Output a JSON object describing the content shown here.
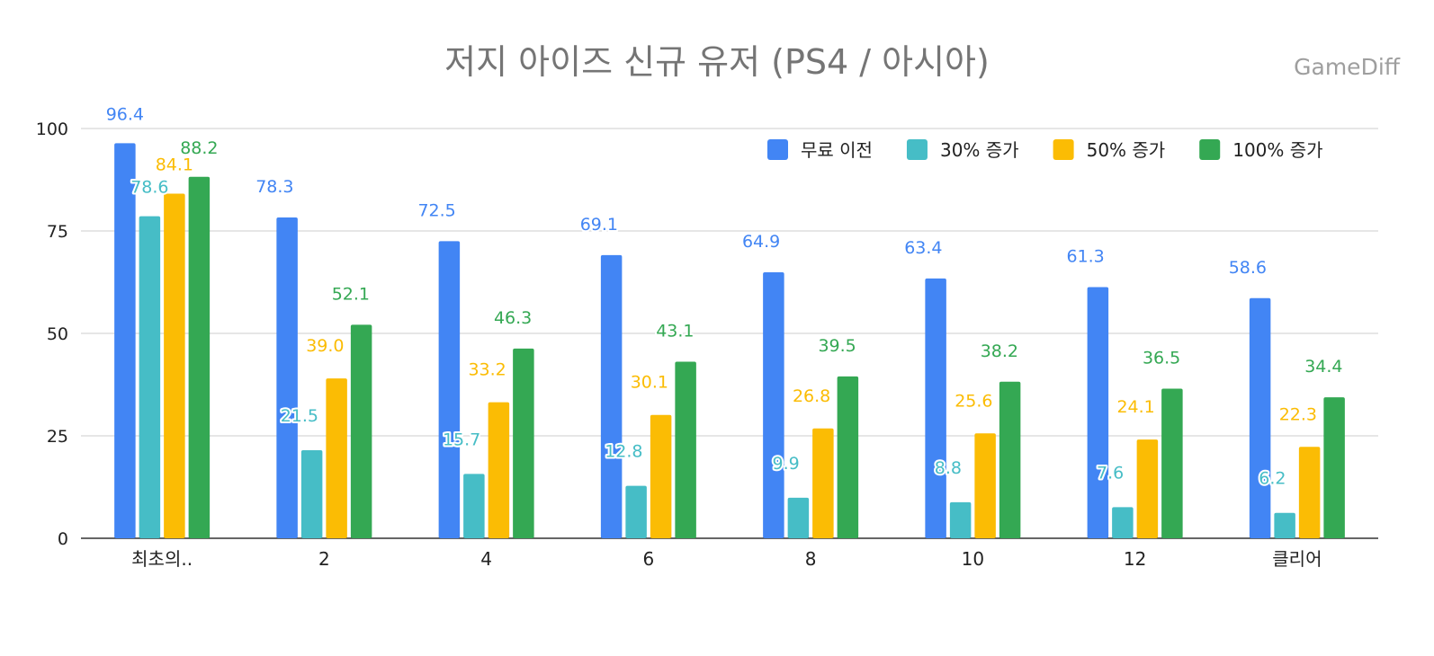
{
  "watermark": "GameDiff",
  "chart_data": {
    "type": "bar",
    "title": "저지 아이즈 신규 유저 (PS4 / 아시아)",
    "xlabel": "",
    "ylabel": "",
    "ylim": [
      0,
      100
    ],
    "yticks": [
      0,
      25,
      50,
      75,
      100
    ],
    "grid": true,
    "legend_position": "top-right",
    "categories": [
      "최초의..",
      "2",
      "4",
      "6",
      "8",
      "10",
      "12",
      "클리어"
    ],
    "series": [
      {
        "name": "무료 이전",
        "color": "#4285f4",
        "values": [
          96.4,
          78.3,
          72.5,
          69.1,
          64.9,
          63.4,
          61.3,
          58.6
        ]
      },
      {
        "name": "30% 증가",
        "color": "#46bdc6",
        "values": [
          78.6,
          21.5,
          15.7,
          12.8,
          9.9,
          8.8,
          7.6,
          6.2
        ]
      },
      {
        "name": "50% 증가",
        "color": "#fbbc04",
        "values": [
          84.1,
          39.0,
          33.2,
          30.1,
          26.8,
          25.6,
          24.1,
          22.3
        ]
      },
      {
        "name": "100% 증가",
        "color": "#34a853",
        "values": [
          88.2,
          52.1,
          46.3,
          43.1,
          39.5,
          38.2,
          36.5,
          34.4
        ]
      }
    ]
  }
}
